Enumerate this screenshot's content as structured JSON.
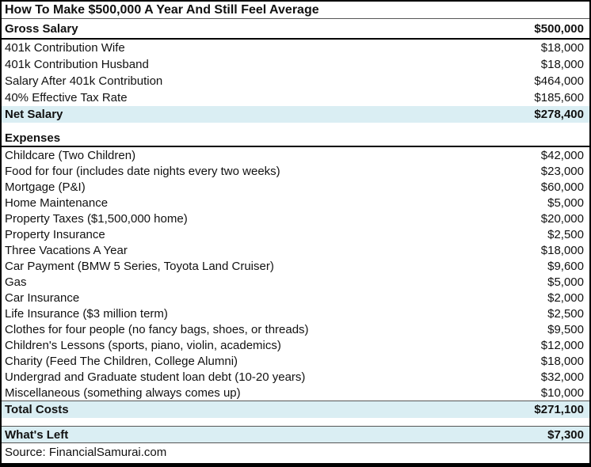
{
  "title": "How To Make $500,000 A Year And Still Feel Average",
  "colors": {
    "highlight": "#daeef3",
    "border": "#000000",
    "text": "#111111"
  },
  "income": {
    "header": {
      "label": "Gross Salary",
      "value": "$500,000"
    },
    "rows": [
      {
        "label": "401k Contribution Wife",
        "value": "$18,000"
      },
      {
        "label": "401k Contribution Husband",
        "value": "$18,000"
      },
      {
        "label": "Salary After 401k Contribution",
        "value": "$464,000"
      },
      {
        "label": "40% Effective Tax Rate",
        "value": "$185,600"
      }
    ],
    "total": {
      "label": "Net Salary",
      "value": "$278,400"
    }
  },
  "expenses": {
    "header": "Expenses",
    "rows": [
      {
        "label": "Childcare (Two Children)",
        "value": "$42,000"
      },
      {
        "label": "Food for four (includes date nights every two weeks)",
        "value": "$23,000"
      },
      {
        "label": "Mortgage (P&I)",
        "value": "$60,000"
      },
      {
        "label": "Home Maintenance",
        "value": "$5,000"
      },
      {
        "label": "Property Taxes ($1,500,000 home)",
        "value": "$20,000"
      },
      {
        "label": "Property Insurance",
        "value": "$2,500"
      },
      {
        "label": "Three Vacations A Year",
        "value": "$18,000"
      },
      {
        "label": "Car Payment (BMW 5 Series, Toyota Land Cruiser)",
        "value": "$9,600"
      },
      {
        "label": "Gas",
        "value": "$5,000"
      },
      {
        "label": "Car Insurance",
        "value": "$2,000"
      },
      {
        "label": "Life Insurance ($3 million term)",
        "value": "$2,500"
      },
      {
        "label": "Clothes for four people (no fancy bags, shoes, or threads)",
        "value": "$9,500"
      },
      {
        "label": "Children's Lessons (sports, piano, violin, academics)",
        "value": "$12,000"
      },
      {
        "label": "Charity (Feed The Children, College Alumni)",
        "value": "$18,000"
      },
      {
        "label": "Undergrad and Graduate student loan debt (10-20 years)",
        "value": "$32,000"
      },
      {
        "label": "Miscellaneous (something always comes up)",
        "value": "$10,000"
      }
    ],
    "total": {
      "label": "Total Costs",
      "value": "$271,100"
    }
  },
  "summary": {
    "label": "What's Left",
    "value": "$7,300"
  },
  "source": "Source: FinancialSamurai.com"
}
